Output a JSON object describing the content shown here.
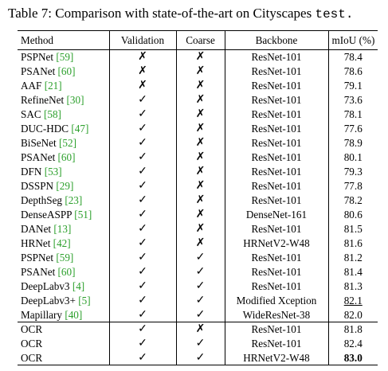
{
  "caption": {
    "prefix": "Table 7:",
    "text": "Comparison with state-of-the-art on Cityscapes",
    "code": "test."
  },
  "colors": {
    "citation": "#2ca02c"
  },
  "table": {
    "headers": [
      "Method",
      "Validation",
      "Coarse",
      "Backbone",
      "mIoU (%)"
    ],
    "rows": [
      {
        "method": "PSPNet",
        "cite": "[59]",
        "validation": "✗",
        "coarse": "✗",
        "backbone": "ResNet-101",
        "miou": "78.4"
      },
      {
        "method": "PSANet",
        "cite": "[60]",
        "validation": "✗",
        "coarse": "✗",
        "backbone": "ResNet-101",
        "miou": "78.6"
      },
      {
        "method": "AAF",
        "cite": "[21]",
        "validation": "✗",
        "coarse": "✗",
        "backbone": "ResNet-101",
        "miou": "79.1"
      },
      {
        "method": "RefineNet",
        "cite": "[30]",
        "validation": "✓",
        "coarse": "✗",
        "backbone": "ResNet-101",
        "miou": "73.6"
      },
      {
        "method": "SAC",
        "cite": "[58]",
        "validation": "✓",
        "coarse": "✗",
        "backbone": "ResNet-101",
        "miou": "78.1"
      },
      {
        "method": "DUC-HDC",
        "cite": "[47]",
        "validation": "✓",
        "coarse": "✗",
        "backbone": "ResNet-101",
        "miou": "77.6"
      },
      {
        "method": "BiSeNet",
        "cite": "[52]",
        "validation": "✓",
        "coarse": "✗",
        "backbone": "ResNet-101",
        "miou": "78.9"
      },
      {
        "method": "PSANet",
        "cite": "[60]",
        "validation": "✓",
        "coarse": "✗",
        "backbone": "ResNet-101",
        "miou": "80.1"
      },
      {
        "method": "DFN",
        "cite": "[53]",
        "validation": "✓",
        "coarse": "✗",
        "backbone": "ResNet-101",
        "miou": "79.3"
      },
      {
        "method": "DSSPN",
        "cite": "[29]",
        "validation": "✓",
        "coarse": "✗",
        "backbone": "ResNet-101",
        "miou": "77.8"
      },
      {
        "method": "DepthSeg",
        "cite": "[23]",
        "validation": "✓",
        "coarse": "✗",
        "backbone": "ResNet-101",
        "miou": "78.2"
      },
      {
        "method": "DenseASPP",
        "cite": "[51]",
        "validation": "✓",
        "coarse": "✗",
        "backbone": "DenseNet-161",
        "miou": "80.6"
      },
      {
        "method": "DANet",
        "cite": "[13]",
        "validation": "✓",
        "coarse": "✗",
        "backbone": "ResNet-101",
        "miou": "81.5"
      },
      {
        "method": "HRNet",
        "cite": "[42]",
        "validation": "✓",
        "coarse": "✗",
        "backbone": "HRNetV2-W48",
        "miou": "81.6"
      },
      {
        "method": "PSPNet",
        "cite": "[59]",
        "validation": "✓",
        "coarse": "✓",
        "backbone": "ResNet-101",
        "miou": "81.2"
      },
      {
        "method": "PSANet",
        "cite": "[60]",
        "validation": "✓",
        "coarse": "✓",
        "backbone": "ResNet-101",
        "miou": "81.4"
      },
      {
        "method": "DeepLabv3",
        "cite": "[4]",
        "validation": "✓",
        "coarse": "✓",
        "backbone": "ResNet-101",
        "miou": "81.3"
      },
      {
        "method": "DeepLabv3+",
        "cite": "[5]",
        "validation": "✓",
        "coarse": "✓",
        "backbone": "Modified Xception",
        "miou": "82.1",
        "miou_underline": true
      },
      {
        "method": "Mapillary",
        "cite": "[40]",
        "validation": "✓",
        "coarse": "✓",
        "backbone": "WideResNet-38",
        "miou": "82.0"
      },
      {
        "method": "OCR",
        "cite": "",
        "validation": "✓",
        "coarse": "✗",
        "backbone": "ResNet-101",
        "miou": "81.8",
        "group_start": true
      },
      {
        "method": "OCR",
        "cite": "",
        "validation": "✓",
        "coarse": "✓",
        "backbone": "ResNet-101",
        "miou": "82.4"
      },
      {
        "method": "OCR",
        "cite": "",
        "validation": "✓",
        "coarse": "✓",
        "backbone": "HRNetV2-W48",
        "miou": "83.0",
        "miou_bold": true
      }
    ]
  }
}
